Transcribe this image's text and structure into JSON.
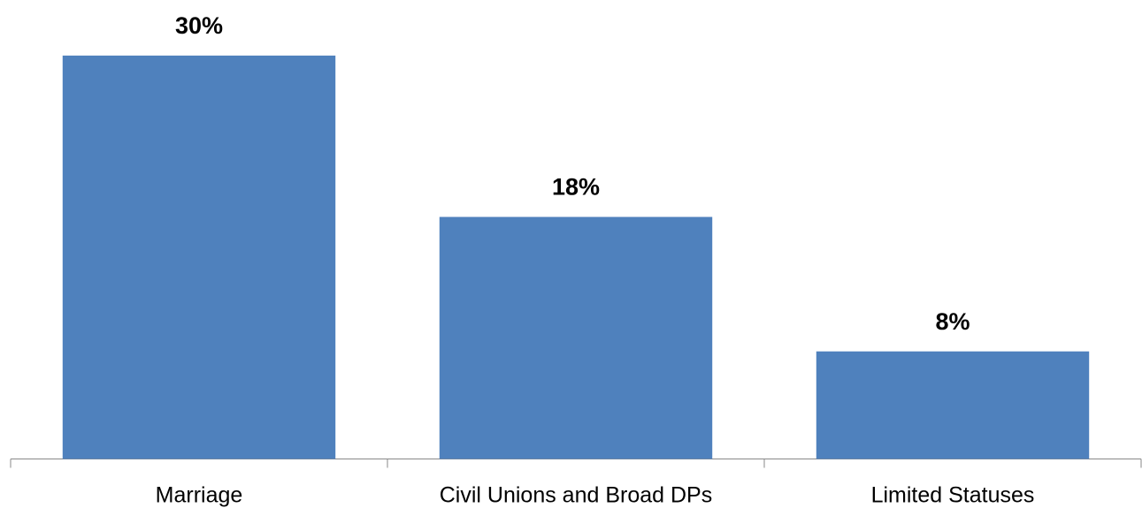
{
  "chart_data": {
    "type": "bar",
    "categories": [
      "Marriage",
      "Civil Unions and Broad DPs",
      "Limited Statuses"
    ],
    "values": [
      30,
      18,
      8
    ],
    "value_labels": [
      "30%",
      "18%",
      "8%"
    ],
    "color": "#4f81bd"
  }
}
